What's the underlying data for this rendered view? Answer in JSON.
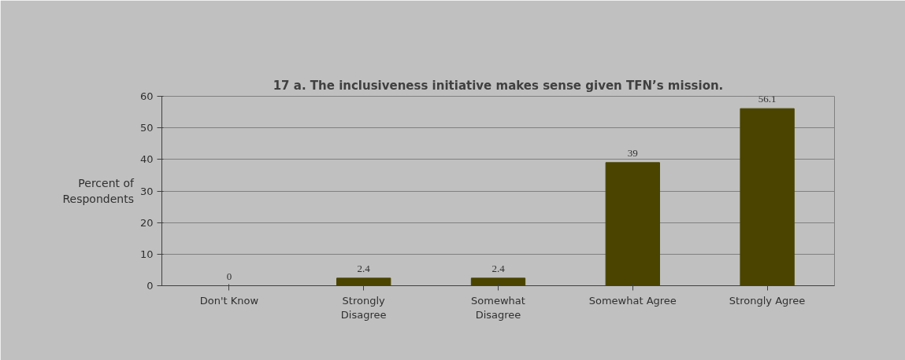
{
  "chart_data": {
    "type": "bar",
    "title": "17 a. The inclusiveness initiative makes sense given TFN’s mission.",
    "ylabel": "Percent of Respondents",
    "categories": [
      "Don't Know",
      "Strongly Disagree",
      "Somewhat Disagree",
      "Somewhat Agree",
      "Strongly Agree"
    ],
    "values": [
      0,
      2.4,
      2.4,
      39,
      56.1
    ],
    "color": "#4a4400",
    "ylim": [
      0,
      60
    ],
    "yticks": [
      0,
      10,
      20,
      30,
      40,
      50,
      60
    ],
    "grid": "y",
    "data_labels": true
  }
}
